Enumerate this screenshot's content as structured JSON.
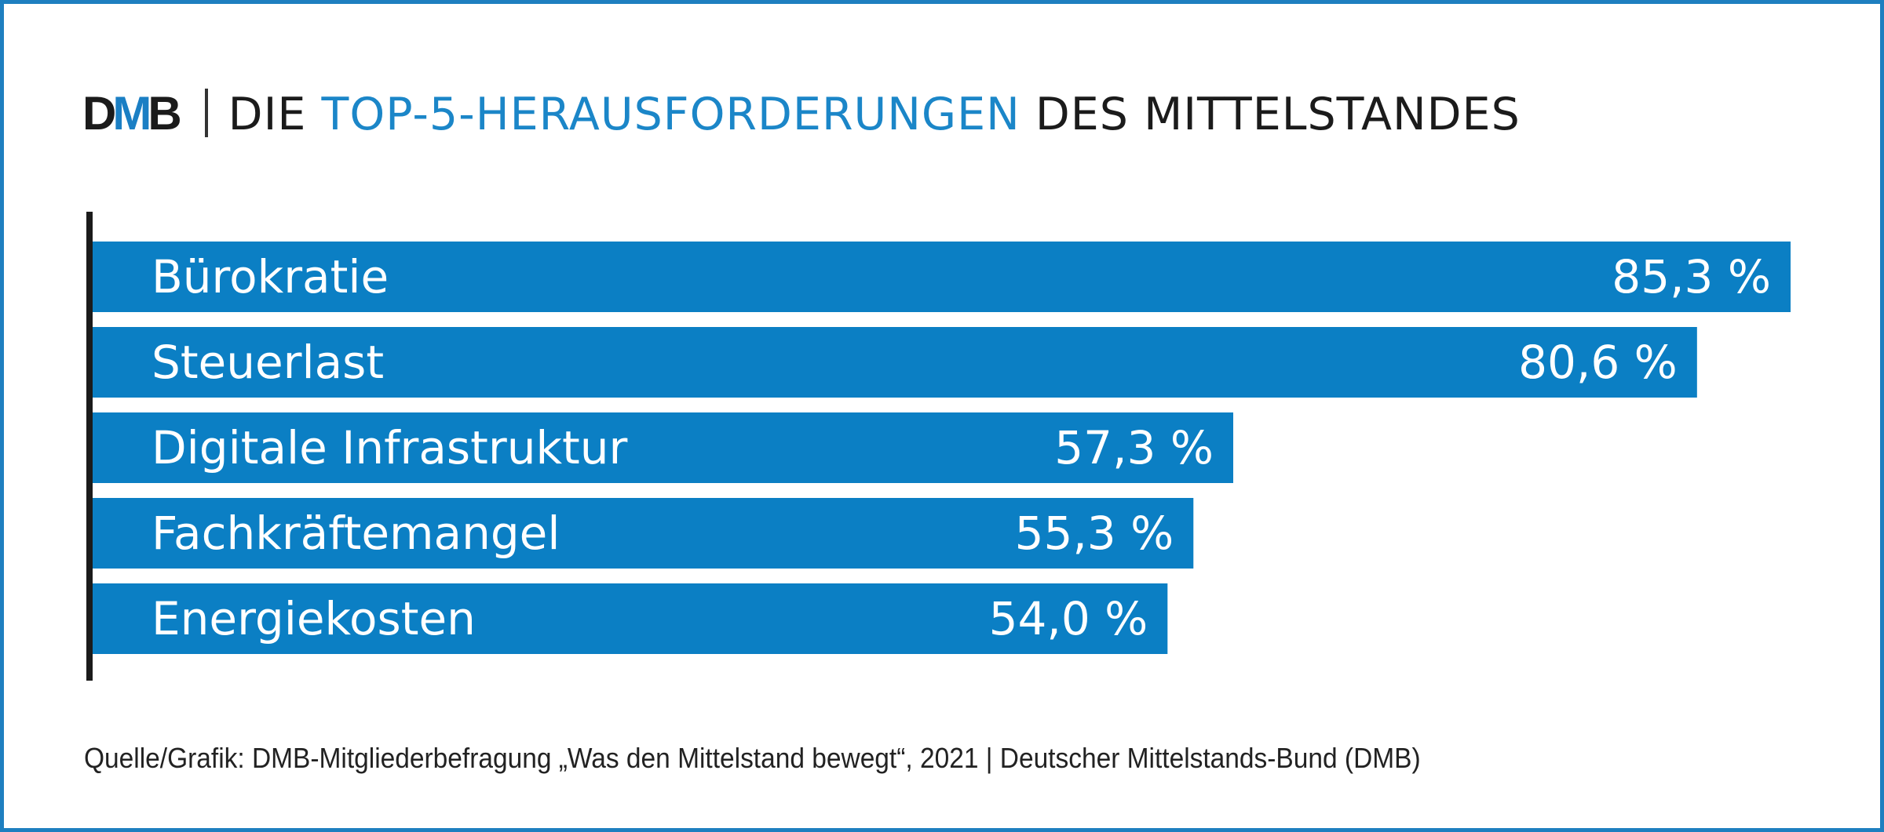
{
  "header": {
    "logo": [
      "D",
      "M",
      "B"
    ],
    "title_prefix": "DIE",
    "title_accent": "TOP-5-HERAUSFORDERUNGEN",
    "title_suffix": "DES MITTELSTANDES"
  },
  "colors": {
    "bar": "#0b7fc4",
    "accent": "#1b86c8",
    "frame": "#1e7fc0",
    "axis": "#1b1b1b"
  },
  "chart_data": {
    "type": "bar",
    "orientation": "horizontal",
    "title": "DMB | DIE TOP-5-HERAUSFORDERUNGEN DES MITTELSTANDES",
    "categories": [
      "Bürokratie",
      "Steuerlast",
      "Digitale Infrastruktur",
      "Fachkräftemangel",
      "Energiekosten"
    ],
    "values": [
      85.3,
      80.6,
      57.3,
      55.3,
      54.0
    ],
    "value_labels": [
      "85,3 %",
      "80,6 %",
      "57,3 %",
      "55,3 %",
      "54,0 %"
    ],
    "unit": "%",
    "xlabel": "",
    "ylabel": "",
    "xlim": [
      0,
      85.3
    ],
    "grid": false,
    "legend": "none"
  },
  "footer": {
    "source": "Quelle/Grafik: DMB-Mitgliederbefragung „Was den Mittelstand bewegt“, 2021 | Deutscher Mittelstands-Bund (DMB)"
  }
}
